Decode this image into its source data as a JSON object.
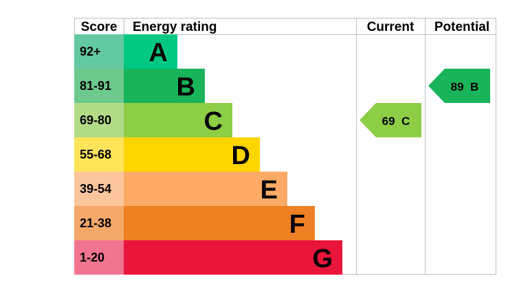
{
  "chart_data": {
    "type": "table",
    "headers": {
      "score": "Score",
      "rating": "Energy rating",
      "current": "Current",
      "potential": "Potential"
    },
    "bands": [
      {
        "score": "92+",
        "letter": "A",
        "color": "#00c781",
        "score_bg": "#63c9a2"
      },
      {
        "score": "81-91",
        "letter": "B",
        "color": "#19b459",
        "score_bg": "#6ec98d"
      },
      {
        "score": "69-80",
        "letter": "C",
        "color": "#8dce46",
        "score_bg": "#b1db86"
      },
      {
        "score": "55-68",
        "letter": "D",
        "color": "#ffd500",
        "score_bg": "#ffe45a"
      },
      {
        "score": "39-54",
        "letter": "E",
        "color": "#fcaa65",
        "score_bg": "#fcc59b"
      },
      {
        "score": "21-38",
        "letter": "F",
        "color": "#ef8023",
        "score_bg": "#f4a86a"
      },
      {
        "score": "1-20",
        "letter": "G",
        "color": "#e9153b",
        "score_bg": "#f17590"
      }
    ],
    "current": {
      "value": 69,
      "letter": "C",
      "label": "69  C",
      "color": "#8dce46"
    },
    "potential": {
      "value": 89,
      "letter": "B",
      "label": "89  B",
      "color": "#19b459"
    },
    "border_color": "#bfbfbf"
  }
}
